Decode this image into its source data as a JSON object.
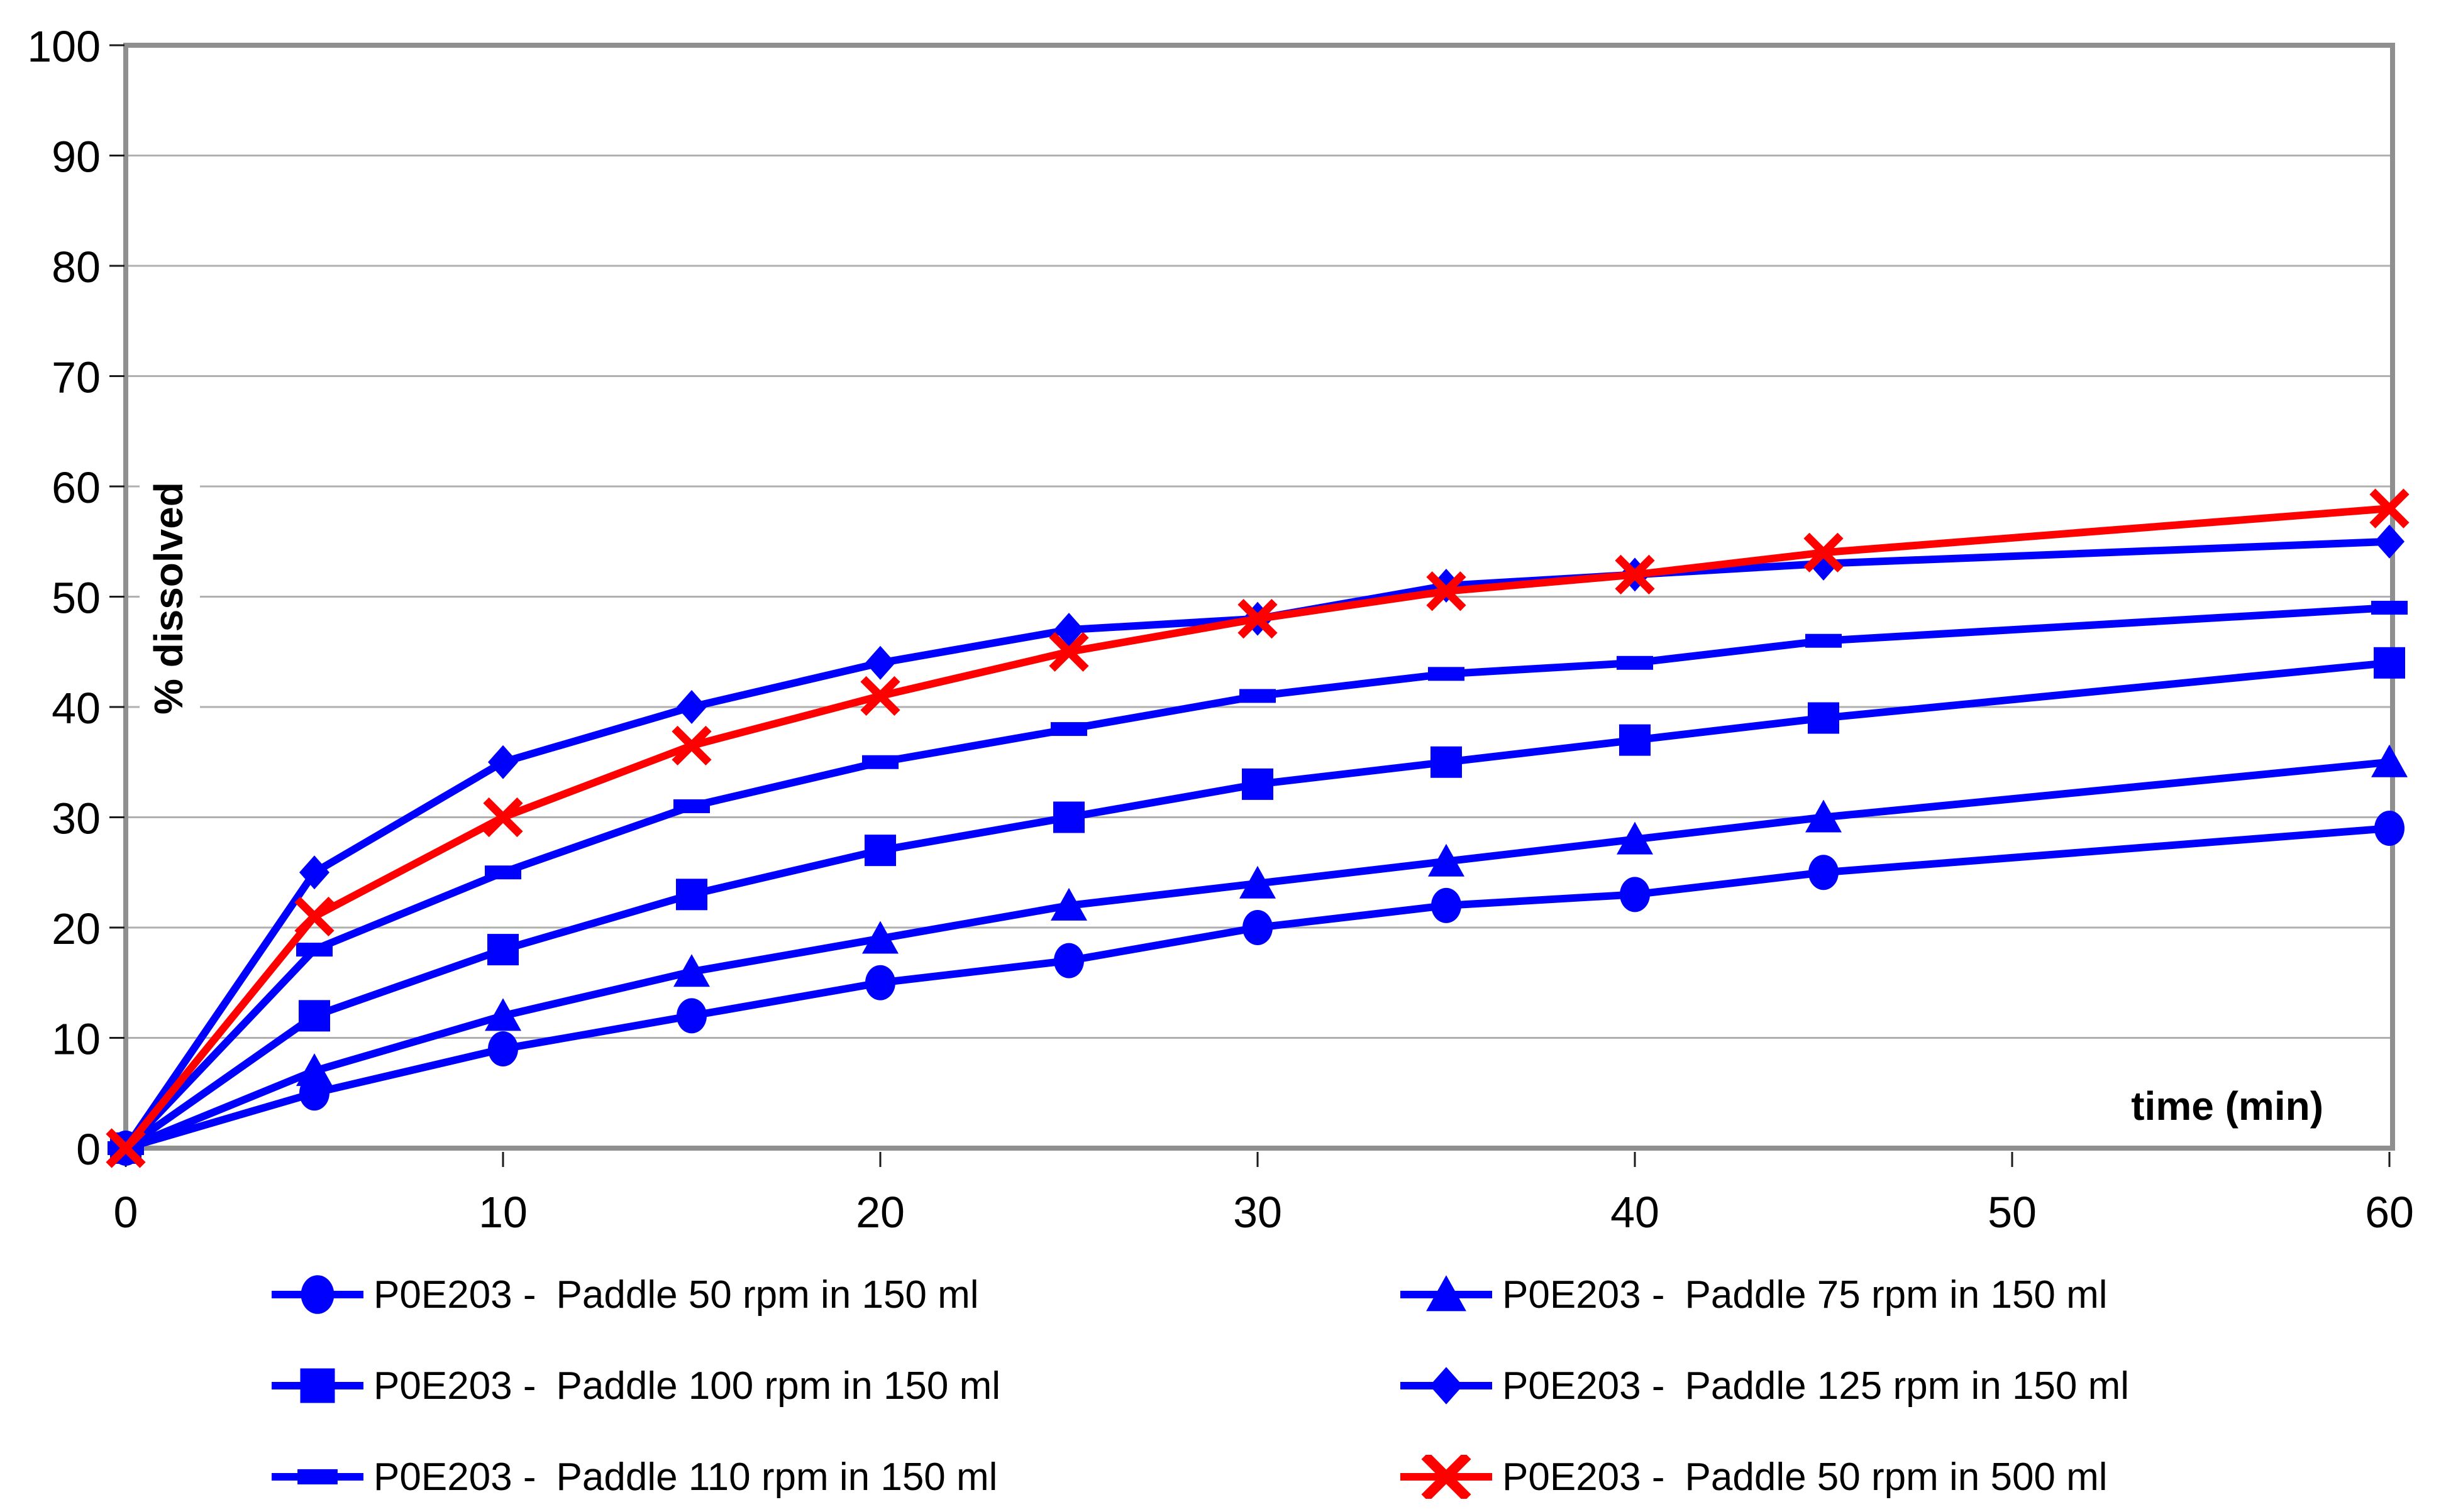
{
  "chart_data": {
    "type": "line",
    "title": "",
    "xlabel": "time (min)",
    "ylabel": "% dissolved",
    "xlim": [
      0,
      60
    ],
    "ylim": [
      0,
      100
    ],
    "x_ticks": [
      0,
      10,
      20,
      30,
      40,
      50,
      60
    ],
    "y_ticks": [
      0,
      10,
      20,
      30,
      40,
      50,
      60,
      70,
      80,
      90,
      100
    ],
    "grid": "horizontal-only",
    "legend_position": "bottom-two-columns",
    "x": [
      0,
      5,
      10,
      15,
      20,
      25,
      30,
      35,
      40,
      45,
      60
    ],
    "series": [
      {
        "code": "P0E203 -",
        "label": "Paddle 50 rpm in 150 ml",
        "marker": "circle",
        "color": "#0000ff",
        "values": [
          0,
          5,
          9,
          12,
          15,
          17,
          20,
          22,
          23,
          25,
          29
        ]
      },
      {
        "code": "P0E203 -",
        "label": "Paddle 75 rpm in 150 ml",
        "marker": "triangle",
        "color": "#0000ff",
        "values": [
          0,
          7,
          12,
          16,
          19,
          22,
          24,
          26,
          28,
          30,
          35
        ]
      },
      {
        "code": "P0E203 -",
        "label": "Paddle 100 rpm in 150 ml",
        "marker": "square",
        "color": "#0000ff",
        "values": [
          0,
          12,
          18,
          23,
          27,
          30,
          33,
          35,
          37,
          39,
          44
        ]
      },
      {
        "code": "P0E203 -",
        "label": "Paddle 110 rpm in 150 ml",
        "marker": "dash",
        "color": "#0000ff",
        "values": [
          0,
          18,
          25,
          31,
          35,
          38,
          41,
          43,
          44,
          46,
          49
        ]
      },
      {
        "code": "P0E203 -",
        "label": "Paddle 125 rpm in 150 ml",
        "marker": "diamond",
        "color": "#0000ff",
        "values": [
          0,
          25,
          35,
          40,
          44,
          47,
          48,
          51,
          52,
          53,
          55
        ]
      },
      {
        "code": "P0E203 -",
        "label": "Paddle 50 rpm in 500 ml",
        "marker": "x",
        "color": "#ff0000",
        "values": [
          0,
          21,
          30,
          36.5,
          41,
          45,
          48,
          50.5,
          52,
          54,
          58
        ]
      }
    ],
    "colors": {
      "series_blue": "#0000ff",
      "series_red": "#ff0000",
      "gridline": "#b0b0b0",
      "frame": "#8f8f8f",
      "tick": "#1a1a1a",
      "text": "#000000",
      "background": "#ffffff"
    }
  }
}
